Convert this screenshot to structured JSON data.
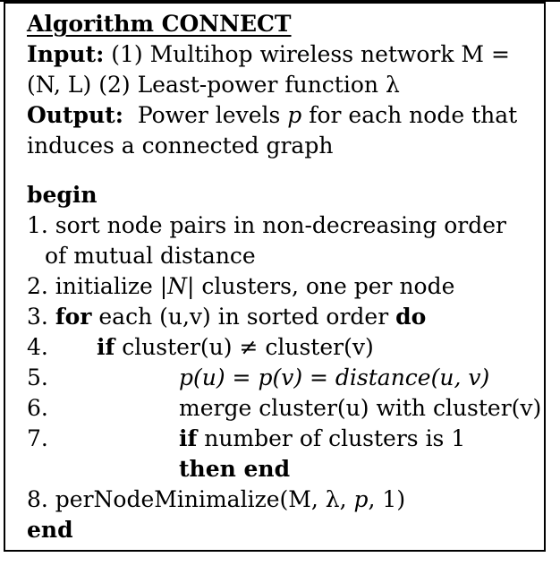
{
  "algorithm": {
    "title": "Algorithm CONNECT",
    "input_label": "Input:",
    "input_line1": " (1) Multihop wireless network M =",
    "input_line2": "(N, L) (2) Least-power function λ",
    "output_label": "Output:",
    "output_line1_a": "  Power levels ",
    "output_line1_p": "p",
    "output_line1_b": " for each node that",
    "output_line2": "induces a connected graph",
    "begin": "begin",
    "step1_a": "1. sort node pairs in non-decreasing order",
    "step1_b": "of mutual distance",
    "step2_a": "2. initialize |",
    "step2_N": "N",
    "step2_b": "| clusters, one per node",
    "step3_num": "3. ",
    "step3_for": "for",
    "step3_mid": " each (u,v) in sorted order ",
    "step3_do": "do",
    "step4_num": "4.",
    "step4_if": "if",
    "step4_text": " cluster(u) ≠ cluster(v)",
    "step5_num": "5.",
    "step5_text": "p(u) = p(v) = distance(u, v)",
    "step6_num": "6.",
    "step6_text": "merge cluster(u) with cluster(v)",
    "step7_num": "7.",
    "step7_if": "if",
    "step7_text": " number of clusters is 1",
    "step7_then": "then end",
    "step8_a": "8. perNodeMinimalize(M, λ, ",
    "step8_p": "p",
    "step8_b": ", 1)",
    "end": "end"
  }
}
